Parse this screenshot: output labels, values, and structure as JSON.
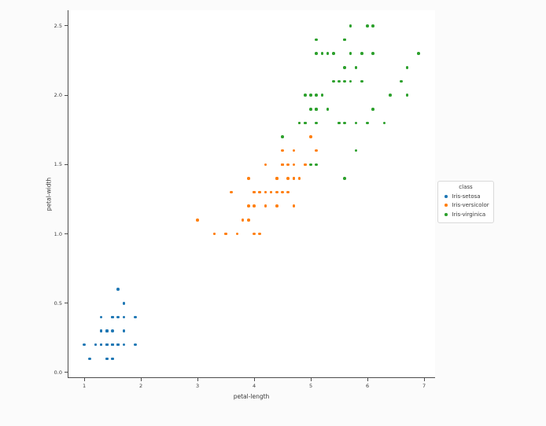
{
  "page": {
    "background": "#fbfbfb",
    "plot_background": "#ffffff"
  },
  "chart_data": {
    "type": "scatter",
    "title": "",
    "xlabel": "petal-length",
    "ylabel": "petal-width",
    "xlim": [
      0.708,
      7.194
    ],
    "ylim": [
      -0.04,
      2.613
    ],
    "x_ticks": [
      1,
      2,
      3,
      4,
      5,
      6,
      7
    ],
    "x_tick_labels": [
      "1",
      "2",
      "3",
      "4",
      "5",
      "6",
      "7"
    ],
    "y_ticks": [
      0.0,
      0.5,
      1.0,
      1.5,
      2.0,
      2.5
    ],
    "y_tick_labels": [
      "0.0",
      "0.5",
      "1.0",
      "1.5",
      "2.0",
      "2.5"
    ],
    "grid": false,
    "legend": {
      "title": "class",
      "position": "right-outside",
      "entries": [
        {
          "label": "Iris-setosa",
          "color": "#1f77b4"
        },
        {
          "label": "Iris-versicolor",
          "color": "#ff7f0e"
        },
        {
          "label": "Iris-virginica",
          "color": "#2ca02c"
        }
      ]
    },
    "series": [
      {
        "name": "Iris-setosa",
        "color": "#1f77b4",
        "points": [
          [
            1.4,
            0.2
          ],
          [
            1.4,
            0.2
          ],
          [
            1.3,
            0.2
          ],
          [
            1.5,
            0.2
          ],
          [
            1.4,
            0.2
          ],
          [
            1.7,
            0.4
          ],
          [
            1.4,
            0.3
          ],
          [
            1.5,
            0.2
          ],
          [
            1.4,
            0.2
          ],
          [
            1.5,
            0.1
          ],
          [
            1.5,
            0.2
          ],
          [
            1.6,
            0.2
          ],
          [
            1.4,
            0.1
          ],
          [
            1.1,
            0.1
          ],
          [
            1.2,
            0.2
          ],
          [
            1.5,
            0.4
          ],
          [
            1.3,
            0.4
          ],
          [
            1.4,
            0.3
          ],
          [
            1.7,
            0.3
          ],
          [
            1.5,
            0.3
          ],
          [
            1.7,
            0.2
          ],
          [
            1.5,
            0.4
          ],
          [
            1.0,
            0.2
          ],
          [
            1.7,
            0.5
          ],
          [
            1.9,
            0.2
          ],
          [
            1.6,
            0.2
          ],
          [
            1.6,
            0.4
          ],
          [
            1.5,
            0.2
          ],
          [
            1.4,
            0.2
          ],
          [
            1.6,
            0.2
          ],
          [
            1.6,
            0.2
          ],
          [
            1.5,
            0.4
          ],
          [
            1.5,
            0.1
          ],
          [
            1.4,
            0.2
          ],
          [
            1.5,
            0.2
          ],
          [
            1.2,
            0.2
          ],
          [
            1.3,
            0.2
          ],
          [
            1.4,
            0.1
          ],
          [
            1.3,
            0.2
          ],
          [
            1.5,
            0.2
          ],
          [
            1.3,
            0.3
          ],
          [
            1.3,
            0.3
          ],
          [
            1.3,
            0.2
          ],
          [
            1.6,
            0.6
          ],
          [
            1.9,
            0.4
          ],
          [
            1.4,
            0.3
          ],
          [
            1.6,
            0.2
          ],
          [
            1.4,
            0.2
          ],
          [
            1.5,
            0.2
          ],
          [
            1.4,
            0.2
          ]
        ]
      },
      {
        "name": "Iris-versicolor",
        "color": "#ff7f0e",
        "points": [
          [
            4.7,
            1.4
          ],
          [
            4.5,
            1.5
          ],
          [
            4.9,
            1.5
          ],
          [
            4.0,
            1.3
          ],
          [
            4.6,
            1.5
          ],
          [
            4.5,
            1.3
          ],
          [
            4.7,
            1.6
          ],
          [
            3.3,
            1.0
          ],
          [
            4.6,
            1.3
          ],
          [
            3.9,
            1.4
          ],
          [
            3.5,
            1.0
          ],
          [
            4.2,
            1.5
          ],
          [
            4.0,
            1.0
          ],
          [
            4.7,
            1.4
          ],
          [
            3.6,
            1.3
          ],
          [
            4.4,
            1.4
          ],
          [
            4.5,
            1.5
          ],
          [
            4.1,
            1.0
          ],
          [
            4.5,
            1.5
          ],
          [
            3.9,
            1.1
          ],
          [
            4.8,
            1.8
          ],
          [
            4.0,
            1.3
          ],
          [
            4.9,
            1.5
          ],
          [
            4.7,
            1.2
          ],
          [
            4.3,
            1.3
          ],
          [
            4.4,
            1.4
          ],
          [
            4.8,
            1.4
          ],
          [
            5.0,
            1.7
          ],
          [
            4.5,
            1.5
          ],
          [
            3.5,
            1.0
          ],
          [
            3.8,
            1.1
          ],
          [
            3.7,
            1.0
          ],
          [
            3.9,
            1.2
          ],
          [
            5.1,
            1.6
          ],
          [
            4.5,
            1.5
          ],
          [
            4.5,
            1.6
          ],
          [
            4.7,
            1.5
          ],
          [
            4.4,
            1.3
          ],
          [
            4.1,
            1.3
          ],
          [
            4.0,
            1.3
          ],
          [
            4.4,
            1.2
          ],
          [
            4.6,
            1.4
          ],
          [
            4.0,
            1.2
          ],
          [
            3.3,
            1.0
          ],
          [
            4.2,
            1.3
          ],
          [
            4.2,
            1.2
          ],
          [
            4.2,
            1.3
          ],
          [
            4.3,
            1.3
          ],
          [
            3.0,
            1.1
          ],
          [
            4.1,
            1.3
          ]
        ]
      },
      {
        "name": "Iris-virginica",
        "color": "#2ca02c",
        "points": [
          [
            6.0,
            2.5
          ],
          [
            5.1,
            1.9
          ],
          [
            5.9,
            2.1
          ],
          [
            5.6,
            1.8
          ],
          [
            5.8,
            2.2
          ],
          [
            6.6,
            2.1
          ],
          [
            4.5,
            1.7
          ],
          [
            6.3,
            1.8
          ],
          [
            5.8,
            1.8
          ],
          [
            6.1,
            2.5
          ],
          [
            5.1,
            2.0
          ],
          [
            5.3,
            1.9
          ],
          [
            5.5,
            2.1
          ],
          [
            5.0,
            2.0
          ],
          [
            5.1,
            2.4
          ],
          [
            5.3,
            2.3
          ],
          [
            5.5,
            1.8
          ],
          [
            6.7,
            2.2
          ],
          [
            6.9,
            2.3
          ],
          [
            5.0,
            1.5
          ],
          [
            5.7,
            2.3
          ],
          [
            4.9,
            2.0
          ],
          [
            6.7,
            2.0
          ],
          [
            4.9,
            1.8
          ],
          [
            5.7,
            2.1
          ],
          [
            6.0,
            1.8
          ],
          [
            4.8,
            1.8
          ],
          [
            4.9,
            1.8
          ],
          [
            5.6,
            2.1
          ],
          [
            5.8,
            1.6
          ],
          [
            6.1,
            1.9
          ],
          [
            6.4,
            2.0
          ],
          [
            5.6,
            2.2
          ],
          [
            5.1,
            1.5
          ],
          [
            5.6,
            1.4
          ],
          [
            6.1,
            2.3
          ],
          [
            5.6,
            2.4
          ],
          [
            5.5,
            1.8
          ],
          [
            4.8,
            1.8
          ],
          [
            5.4,
            2.1
          ],
          [
            5.6,
            2.4
          ],
          [
            5.1,
            2.3
          ],
          [
            5.1,
            1.9
          ],
          [
            5.9,
            2.3
          ],
          [
            5.7,
            2.5
          ],
          [
            5.2,
            2.3
          ],
          [
            5.0,
            1.9
          ],
          [
            5.2,
            2.0
          ],
          [
            5.4,
            2.3
          ],
          [
            5.1,
            1.8
          ]
        ]
      }
    ]
  }
}
